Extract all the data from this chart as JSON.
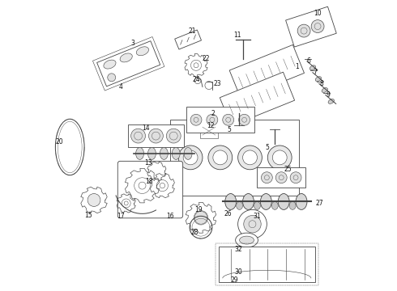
{
  "bg_color": "#ffffff",
  "line_color": "#444444",
  "label_color": "#111111",
  "fig_width": 4.9,
  "fig_height": 3.6,
  "dpi": 100,
  "lw": 0.6,
  "label_fs": 5.5
}
